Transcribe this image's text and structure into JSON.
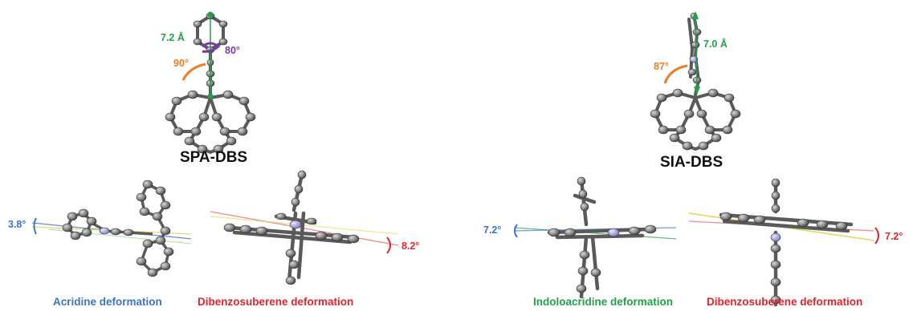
{
  "colors": {
    "green": "#22a04b",
    "purple": "#7a3aa0",
    "orange": "#ef7d22",
    "blue": "#3f74c0",
    "red": "#e0232e",
    "atom": "#8c8c8c",
    "bond": "#5a5a5a",
    "nitrogen": "#a9a9e6"
  },
  "spa": {
    "title": "SPA-DBS",
    "distance": "7.2 Å",
    "twist": "80°",
    "bend": "90°"
  },
  "sia": {
    "title": "SIA-DBS",
    "distance": "7.0 Å",
    "bend": "87°"
  },
  "panels": [
    {
      "caption": "Acridine deformation",
      "angle": "3.8°"
    },
    {
      "caption": "Dibenzosuberene deformation",
      "angle": "8.2°"
    },
    {
      "caption": "Indoloacridine deformation",
      "angle": "7.2°"
    },
    {
      "caption": "Dibenzosuberene deformation",
      "angle": "7.2°"
    }
  ]
}
